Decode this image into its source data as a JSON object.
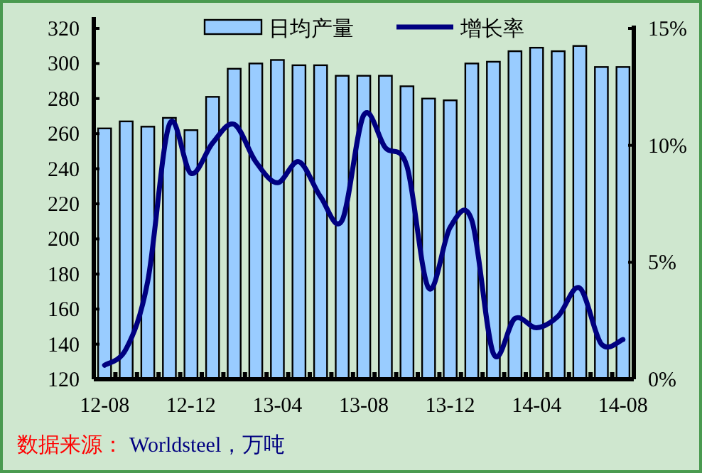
{
  "chart_data": {
    "type": "bar",
    "categories": [
      "12-08",
      null,
      null,
      null,
      "12-12",
      null,
      null,
      null,
      "13-04",
      null,
      null,
      null,
      "13-08",
      null,
      null,
      null,
      "13-12",
      null,
      null,
      null,
      "14-04",
      null,
      null,
      null,
      "14-08"
    ],
    "series": [
      {
        "name": "日均产量",
        "color": "#99ccff",
        "values": [
          263,
          267,
          264,
          269,
          262,
          281,
          297,
          300,
          302,
          299,
          299,
          293,
          293,
          293,
          287,
          280,
          279,
          300,
          301,
          307,
          309,
          307,
          310,
          298,
          298
        ]
      },
      {
        "name": "增长率",
        "type": "line",
        "axis": "y2",
        "color": "#000080",
        "values": [
          0.6,
          1.3,
          4.2,
          10.9,
          8.8,
          10.1,
          10.9,
          9.3,
          8.4,
          9.3,
          7.8,
          6.8,
          11.3,
          9.9,
          9.1,
          3.9,
          6.5,
          6.8,
          1.1,
          2.6,
          2.2,
          2.7,
          3.9,
          1.5,
          1.7
        ]
      }
    ],
    "ylim": [
      120,
      320
    ],
    "yticks": [
      120,
      140,
      160,
      180,
      200,
      220,
      240,
      260,
      280,
      300,
      320
    ],
    "y2lim": [
      0,
      15
    ],
    "y2ticks": [
      {
        "value": 0,
        "label": "0%"
      },
      {
        "value": 5,
        "label": "5%"
      },
      {
        "value": 10,
        "label": "10%"
      },
      {
        "value": 15,
        "label": "15%"
      }
    ],
    "legend": "top",
    "grid": false,
    "annotations": [
      "数据来源：",
      "Worldsteel，万吨"
    ]
  }
}
